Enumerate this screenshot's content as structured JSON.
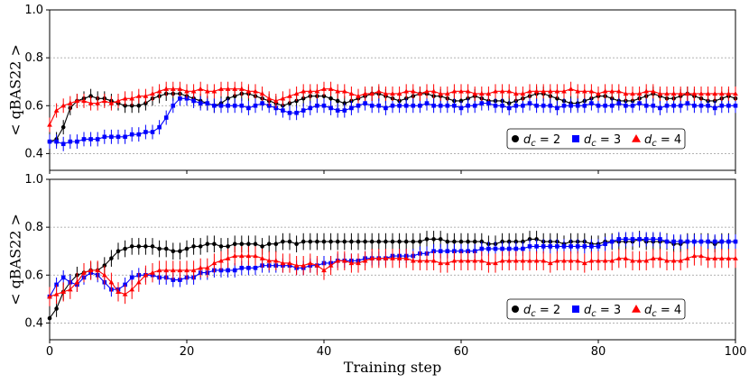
{
  "chart_data": [
    {
      "type": "line",
      "panel": "top",
      "title": "",
      "xlabel": "",
      "ylabel": "< qBAS22 >",
      "xlim": [
        0,
        100
      ],
      "ylim": [
        0.33,
        1.0
      ],
      "x_ticks": [
        0,
        20,
        40,
        60,
        80,
        100
      ],
      "y_ticks": [
        0.4,
        0.6,
        0.8,
        1.0
      ],
      "y_tick_labels": [
        "0.4",
        "0.6",
        "0.8",
        "1.0"
      ],
      "grid_lines": [
        0.4,
        0.6,
        0.8
      ],
      "legend_position": "center-right",
      "legend_entries": [
        {
          "series": 0,
          "label_prefix": "d",
          "label_sub": "c",
          "label_value": "= 2"
        },
        {
          "series": 1,
          "label_prefix": "d",
          "label_sub": "c",
          "label_value": "= 3"
        },
        {
          "series": 2,
          "label_prefix": "d",
          "label_sub": "c",
          "label_value": "= 4"
        }
      ],
      "series": [
        {
          "name": "d_c = 2",
          "color": "#000000",
          "marker": "circle",
          "error": 0.03,
          "x_step": 1,
          "values": [
            0.45,
            0.46,
            0.51,
            0.59,
            0.62,
            0.63,
            0.64,
            0.63,
            0.63,
            0.62,
            0.61,
            0.6,
            0.6,
            0.6,
            0.61,
            0.63,
            0.64,
            0.65,
            0.65,
            0.65,
            0.64,
            0.63,
            0.62,
            0.61,
            0.6,
            0.61,
            0.63,
            0.64,
            0.65,
            0.65,
            0.64,
            0.63,
            0.62,
            0.61,
            0.6,
            0.61,
            0.62,
            0.63,
            0.64,
            0.64,
            0.64,
            0.63,
            0.62,
            0.61,
            0.62,
            0.63,
            0.64,
            0.65,
            0.65,
            0.64,
            0.63,
            0.62,
            0.63,
            0.64,
            0.65,
            0.65,
            0.64,
            0.64,
            0.63,
            0.62,
            0.62,
            0.63,
            0.64,
            0.63,
            0.62,
            0.62,
            0.62,
            0.61,
            0.62,
            0.63,
            0.64,
            0.65,
            0.65,
            0.64,
            0.63,
            0.62,
            0.61,
            0.61,
            0.62,
            0.63,
            0.64,
            0.64,
            0.63,
            0.62,
            0.62,
            0.62,
            0.63,
            0.64,
            0.65,
            0.64,
            0.63,
            0.63,
            0.64,
            0.65,
            0.64,
            0.63,
            0.62,
            0.62,
            0.63,
            0.64,
            0.63
          ]
        },
        {
          "name": "d_c = 3",
          "color": "#0000ff",
          "marker": "square",
          "error": 0.03,
          "x_step": 1,
          "values": [
            0.45,
            0.45,
            0.44,
            0.45,
            0.45,
            0.46,
            0.46,
            0.46,
            0.47,
            0.47,
            0.47,
            0.47,
            0.48,
            0.48,
            0.49,
            0.49,
            0.51,
            0.55,
            0.6,
            0.63,
            0.63,
            0.62,
            0.61,
            0.61,
            0.6,
            0.6,
            0.6,
            0.6,
            0.6,
            0.59,
            0.6,
            0.61,
            0.6,
            0.59,
            0.58,
            0.57,
            0.57,
            0.58,
            0.59,
            0.6,
            0.6,
            0.59,
            0.58,
            0.58,
            0.59,
            0.6,
            0.61,
            0.6,
            0.6,
            0.59,
            0.6,
            0.6,
            0.6,
            0.6,
            0.6,
            0.61,
            0.6,
            0.6,
            0.6,
            0.6,
            0.59,
            0.6,
            0.6,
            0.61,
            0.61,
            0.6,
            0.6,
            0.59,
            0.6,
            0.6,
            0.61,
            0.6,
            0.6,
            0.6,
            0.59,
            0.6,
            0.6,
            0.6,
            0.6,
            0.61,
            0.6,
            0.6,
            0.6,
            0.61,
            0.6,
            0.6,
            0.61,
            0.6,
            0.6,
            0.59,
            0.6,
            0.6,
            0.6,
            0.61,
            0.6,
            0.6,
            0.6,
            0.59,
            0.6,
            0.6,
            0.6
          ]
        },
        {
          "name": "d_c = 4",
          "color": "#ff0000",
          "marker": "triangle",
          "error": 0.03,
          "x_step": 1,
          "values": [
            0.52,
            0.58,
            0.6,
            0.61,
            0.62,
            0.62,
            0.61,
            0.61,
            0.62,
            0.61,
            0.62,
            0.63,
            0.63,
            0.64,
            0.64,
            0.65,
            0.66,
            0.67,
            0.67,
            0.67,
            0.66,
            0.66,
            0.67,
            0.66,
            0.66,
            0.67,
            0.67,
            0.67,
            0.67,
            0.66,
            0.66,
            0.65,
            0.63,
            0.62,
            0.63,
            0.64,
            0.65,
            0.66,
            0.66,
            0.66,
            0.67,
            0.67,
            0.66,
            0.66,
            0.65,
            0.64,
            0.65,
            0.65,
            0.66,
            0.65,
            0.65,
            0.65,
            0.66,
            0.66,
            0.65,
            0.66,
            0.66,
            0.65,
            0.65,
            0.66,
            0.66,
            0.66,
            0.65,
            0.65,
            0.65,
            0.66,
            0.66,
            0.66,
            0.65,
            0.65,
            0.66,
            0.66,
            0.66,
            0.66,
            0.66,
            0.66,
            0.67,
            0.66,
            0.66,
            0.66,
            0.65,
            0.66,
            0.66,
            0.66,
            0.65,
            0.65,
            0.65,
            0.66,
            0.66,
            0.65,
            0.65,
            0.65,
            0.65,
            0.65,
            0.65,
            0.65,
            0.65,
            0.65,
            0.65,
            0.65,
            0.65
          ]
        }
      ]
    },
    {
      "type": "line",
      "panel": "bottom",
      "title": "",
      "xlabel": "Training step",
      "ylabel": "< qBAS22 >",
      "xlim": [
        0,
        100
      ],
      "ylim": [
        0.33,
        1.0
      ],
      "x_ticks": [
        0,
        20,
        40,
        60,
        80,
        100
      ],
      "x_tick_labels": [
        "0",
        "20",
        "40",
        "60",
        "80",
        "100"
      ],
      "y_ticks": [
        0.4,
        0.6,
        0.8,
        1.0
      ],
      "y_tick_labels": [
        "0.4",
        "0.6",
        "0.8",
        "1.0"
      ],
      "grid_lines": [
        0.4,
        0.6,
        0.8
      ],
      "legend_position": "center-right",
      "legend_entries": [
        {
          "series": 0,
          "label_prefix": "d",
          "label_sub": "c",
          "label_value": "= 2"
        },
        {
          "series": 1,
          "label_prefix": "d",
          "label_sub": "c",
          "label_value": "= 3"
        },
        {
          "series": 2,
          "label_prefix": "d",
          "label_sub": "c",
          "label_value": "= 4"
        }
      ],
      "series": [
        {
          "name": "d_c = 2",
          "color": "#000000",
          "marker": "circle",
          "error": 0.035,
          "x_step": 1,
          "values": [
            0.42,
            0.46,
            0.53,
            0.57,
            0.6,
            0.61,
            0.62,
            0.62,
            0.64,
            0.67,
            0.7,
            0.71,
            0.72,
            0.72,
            0.72,
            0.72,
            0.71,
            0.71,
            0.7,
            0.7,
            0.71,
            0.72,
            0.72,
            0.73,
            0.73,
            0.72,
            0.72,
            0.73,
            0.73,
            0.73,
            0.73,
            0.72,
            0.73,
            0.73,
            0.74,
            0.74,
            0.73,
            0.74,
            0.74,
            0.74,
            0.74,
            0.74,
            0.74,
            0.74,
            0.74,
            0.74,
            0.74,
            0.74,
            0.74,
            0.74,
            0.74,
            0.74,
            0.74,
            0.74,
            0.74,
            0.75,
            0.75,
            0.75,
            0.74,
            0.74,
            0.74,
            0.74,
            0.74,
            0.74,
            0.73,
            0.73,
            0.74,
            0.74,
            0.74,
            0.74,
            0.75,
            0.75,
            0.74,
            0.74,
            0.74,
            0.73,
            0.74,
            0.74,
            0.74,
            0.73,
            0.73,
            0.74,
            0.74,
            0.74,
            0.74,
            0.74,
            0.75,
            0.74,
            0.74,
            0.74,
            0.74,
            0.73,
            0.73,
            0.74,
            0.74,
            0.74,
            0.74,
            0.73,
            0.74,
            0.74,
            0.74
          ]
        },
        {
          "name": "d_c = 3",
          "color": "#0000ff",
          "marker": "square",
          "error": 0.03,
          "x_step": 1,
          "values": [
            0.51,
            0.56,
            0.59,
            0.57,
            0.56,
            0.59,
            0.61,
            0.6,
            0.57,
            0.54,
            0.54,
            0.56,
            0.59,
            0.6,
            0.6,
            0.6,
            0.59,
            0.59,
            0.58,
            0.58,
            0.59,
            0.59,
            0.61,
            0.61,
            0.62,
            0.62,
            0.62,
            0.62,
            0.63,
            0.63,
            0.63,
            0.64,
            0.64,
            0.64,
            0.64,
            0.64,
            0.63,
            0.63,
            0.64,
            0.64,
            0.65,
            0.65,
            0.66,
            0.66,
            0.66,
            0.66,
            0.67,
            0.67,
            0.67,
            0.67,
            0.68,
            0.68,
            0.68,
            0.68,
            0.69,
            0.69,
            0.7,
            0.7,
            0.7,
            0.7,
            0.7,
            0.7,
            0.7,
            0.71,
            0.71,
            0.71,
            0.71,
            0.71,
            0.71,
            0.71,
            0.72,
            0.72,
            0.72,
            0.72,
            0.72,
            0.72,
            0.72,
            0.72,
            0.72,
            0.72,
            0.72,
            0.73,
            0.74,
            0.75,
            0.75,
            0.75,
            0.75,
            0.75,
            0.75,
            0.75,
            0.74,
            0.74,
            0.74,
            0.74,
            0.74,
            0.74,
            0.74,
            0.74,
            0.74,
            0.74,
            0.74
          ]
        },
        {
          "name": "d_c = 4",
          "color": "#ff0000",
          "marker": "triangle",
          "error": 0.04,
          "x_step": 1,
          "values": [
            0.51,
            0.52,
            0.53,
            0.54,
            0.57,
            0.61,
            0.62,
            0.62,
            0.6,
            0.57,
            0.53,
            0.52,
            0.54,
            0.57,
            0.6,
            0.61,
            0.62,
            0.62,
            0.62,
            0.62,
            0.62,
            0.62,
            0.63,
            0.63,
            0.65,
            0.66,
            0.67,
            0.68,
            0.68,
            0.68,
            0.68,
            0.67,
            0.66,
            0.66,
            0.65,
            0.65,
            0.64,
            0.64,
            0.65,
            0.64,
            0.62,
            0.64,
            0.66,
            0.66,
            0.65,
            0.65,
            0.66,
            0.67,
            0.67,
            0.67,
            0.67,
            0.67,
            0.67,
            0.66,
            0.66,
            0.66,
            0.66,
            0.65,
            0.65,
            0.66,
            0.66,
            0.66,
            0.66,
            0.66,
            0.65,
            0.65,
            0.66,
            0.66,
            0.66,
            0.66,
            0.66,
            0.66,
            0.66,
            0.65,
            0.66,
            0.66,
            0.66,
            0.66,
            0.65,
            0.66,
            0.66,
            0.66,
            0.66,
            0.67,
            0.67,
            0.66,
            0.66,
            0.66,
            0.67,
            0.67,
            0.66,
            0.66,
            0.66,
            0.67,
            0.68,
            0.68,
            0.67,
            0.67,
            0.67,
            0.67,
            0.67
          ]
        }
      ]
    }
  ]
}
